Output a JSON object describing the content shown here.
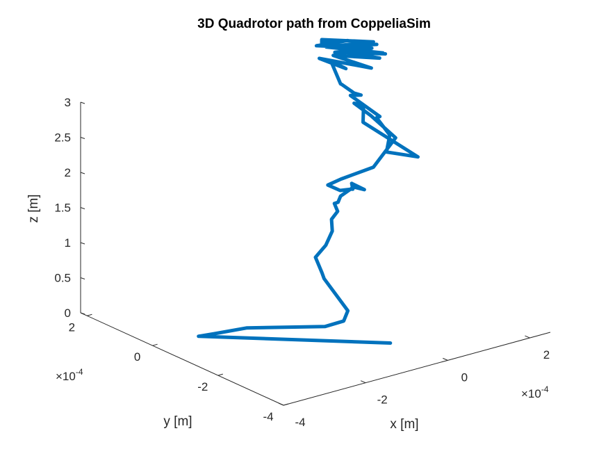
{
  "chart_data": {
    "type": "line",
    "projection": "3d",
    "title": "3D Quadrotor path from CoppeliaSim",
    "xlabel": "x [m]",
    "ylabel": "y [m]",
    "zlabel": "z [m]",
    "x_multiplier": "×10",
    "x_exponent": "-4",
    "y_multiplier": "×10",
    "y_exponent": "-4",
    "x_ticks": [
      "-4",
      "-2",
      "0",
      "2"
    ],
    "y_ticks": [
      "-4",
      "-2",
      "0",
      "2"
    ],
    "z_ticks": [
      "0",
      "0.5",
      "1",
      "1.5",
      "2",
      "2.5",
      "3"
    ],
    "xlim": [
      -4,
      2.5
    ],
    "ylim": [
      -4,
      2.2
    ],
    "zlim": [
      0,
      3
    ],
    "grid": false,
    "series": [
      {
        "color": "#0072BD",
        "points": [
          {
            "x": -0.6,
            "y": -3.0,
            "z": 0.13
          },
          {
            "x": -3.2,
            "y": -0.4,
            "z": 0.09
          },
          {
            "x": -2.9,
            "y": -0.5,
            "z": 0.1
          },
          {
            "x": -2.3,
            "y": -0.75,
            "z": 0.14
          },
          {
            "x": -1.0,
            "y": -1.5,
            "z": 0.11
          },
          {
            "x": -0.62,
            "y": -1.6,
            "z": 0.15
          },
          {
            "x": -0.52,
            "y": -1.6,
            "z": 0.28
          },
          {
            "x": -0.7,
            "y": -1.1,
            "z": 0.66
          },
          {
            "x": -0.75,
            "y": -1.1,
            "z": 0.75
          },
          {
            "x": -0.75,
            "y": -0.9,
            "z": 0.93
          },
          {
            "x": -0.5,
            "y": -0.9,
            "z": 1.06
          },
          {
            "x": -0.3,
            "y": -0.85,
            "z": 1.22
          },
          {
            "x": -0.2,
            "y": -0.7,
            "z": 1.34
          },
          {
            "x": -0.05,
            "y": -0.7,
            "z": 1.43
          },
          {
            "x": -0.05,
            "y": -0.6,
            "z": 1.52
          },
          {
            "x": 0.0,
            "y": -0.65,
            "z": 1.54
          },
          {
            "x": 0.1,
            "y": -0.6,
            "z": 1.6
          },
          {
            "x": 0.55,
            "y": -0.5,
            "z": 1.66
          },
          {
            "x": 0.62,
            "y": -0.3,
            "z": 1.62
          },
          {
            "x": 0.52,
            "y": -0.45,
            "z": 1.6
          },
          {
            "x": 0.65,
            "y": -0.25,
            "z": 1.62
          },
          {
            "x": 0.8,
            "y": -0.45,
            "z": 1.55
          },
          {
            "x": 0.6,
            "y": -0.35,
            "z": 1.6
          },
          {
            "x": 0.48,
            "y": -0.5,
            "z": 1.62
          },
          {
            "x": 0.05,
            "y": -0.65,
            "z": 1.7
          },
          {
            "x": -0.05,
            "y": -0.4,
            "z": 1.74
          },
          {
            "x": 0.35,
            "y": -0.3,
            "z": 1.74
          },
          {
            "x": 1.1,
            "y": -0.35,
            "z": 1.8
          },
          {
            "x": 1.6,
            "y": -0.4,
            "z": 2.15
          },
          {
            "x": 1.0,
            "y": -0.4,
            "z": 2.56
          },
          {
            "x": 0.55,
            "y": -0.45,
            "z": 2.82
          },
          {
            "x": 0.58,
            "y": -0.7,
            "z": 2.84
          },
          {
            "x": 0.45,
            "y": -0.85,
            "z": 2.65
          },
          {
            "x": 0.95,
            "y": -1.9,
            "z": 2.3
          },
          {
            "x": 0.82,
            "y": -1.1,
            "z": 2.22
          },
          {
            "x": 0.9,
            "y": -1.1,
            "z": 2.45
          },
          {
            "x": 0.62,
            "y": -1.05,
            "z": 2.73
          },
          {
            "x": 0.78,
            "y": -0.95,
            "z": 2.7
          },
          {
            "x": 0.38,
            "y": -0.55,
            "z": 2.98
          },
          {
            "x": 0.6,
            "y": -0.6,
            "z": 2.96
          },
          {
            "x": 0.35,
            "y": -0.7,
            "z": 3.05
          },
          {
            "x": 0.45,
            "y": -0.2,
            "z": 3.05
          },
          {
            "x": 0.1,
            "y": -0.6,
            "z": 3.2
          },
          {
            "x": 0.3,
            "y": -0.05,
            "z": 3.38
          },
          {
            "x": 0.55,
            "y": -0.2,
            "z": 3.26
          },
          {
            "x": 0.3,
            "y": 0.3,
            "z": 3.34
          },
          {
            "x": 1.05,
            "y": -0.35,
            "z": 3.22
          },
          {
            "x": 0.4,
            "y": 0.0,
            "z": 3.43
          },
          {
            "x": 1.25,
            "y": -0.35,
            "z": 3.33
          },
          {
            "x": 0.6,
            "y": 0.0,
            "z": 3.45
          },
          {
            "x": 1.45,
            "y": -0.2,
            "z": 3.34
          },
          {
            "x": 0.55,
            "y": 0.4,
            "z": 3.44
          },
          {
            "x": 1.5,
            "y": 0.05,
            "z": 3.4
          },
          {
            "x": 0.5,
            "y": 0.2,
            "z": 3.5
          },
          {
            "x": 1.3,
            "y": -0.1,
            "z": 3.5
          },
          {
            "x": 0.4,
            "y": 0.35,
            "z": 3.58
          },
          {
            "x": 0.2,
            "y": 0.1,
            "z": 3.62
          },
          {
            "x": 0.95,
            "y": 0.25,
            "z": 3.5
          },
          {
            "x": 0.35,
            "y": 0.45,
            "z": 3.48
          },
          {
            "x": 1.3,
            "y": -0.05,
            "z": 3.4
          },
          {
            "x": 0.6,
            "y": 0.2,
            "z": 3.4
          },
          {
            "x": 1.55,
            "y": -0.15,
            "z": 3.3
          }
        ]
      }
    ]
  }
}
